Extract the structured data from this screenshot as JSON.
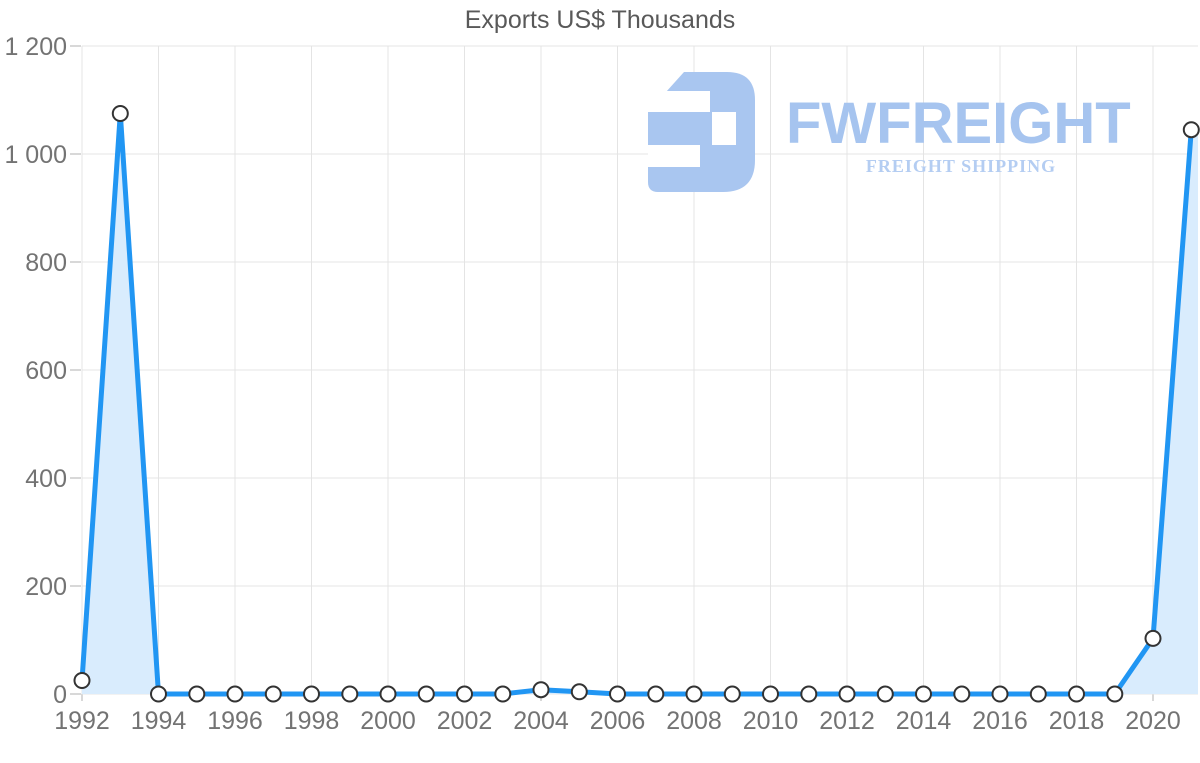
{
  "title": "Exports US$ Thousands",
  "watermark": {
    "brand": "FWFREIGHT",
    "tagline": "FREIGHT SHIPPING",
    "icon": "fwfreight-logo-mark",
    "brand_color": "#a6c4ef",
    "tagline_color": "#b4cdf2",
    "icon_color": "#a9c6f0"
  },
  "chart_data": {
    "type": "area",
    "title": "Exports US$ Thousands",
    "xlabel": "",
    "ylabel": "",
    "x": [
      1992,
      1993,
      1994,
      1995,
      1996,
      1997,
      1998,
      1999,
      2000,
      2001,
      2002,
      2003,
      2004,
      2005,
      2006,
      2007,
      2008,
      2009,
      2010,
      2011,
      2012,
      2013,
      2014,
      2015,
      2016,
      2017,
      2018,
      2019,
      2020,
      2021
    ],
    "series": [
      {
        "name": "Exports US$ Thousands",
        "values": [
          25,
          1075,
          0,
          0,
          0,
          0,
          0,
          0,
          0,
          0,
          0,
          0,
          8,
          4,
          0,
          0,
          0,
          0,
          0,
          0,
          0,
          0,
          0,
          0,
          0,
          0,
          0,
          0,
          103,
          1045
        ]
      }
    ],
    "ylim": [
      0,
      1200
    ],
    "ytick_values": [
      0,
      200,
      400,
      600,
      800,
      1000,
      1200
    ],
    "ytick_labels": [
      "0",
      "200",
      "400",
      "600",
      "800",
      "1 000",
      "1 200"
    ],
    "xtick_values": [
      1992,
      1994,
      1996,
      1998,
      2000,
      2002,
      2004,
      2006,
      2008,
      2010,
      2012,
      2014,
      2016,
      2018,
      2020
    ],
    "grid": true,
    "legend": "none",
    "colors": {
      "line": "#2196f3",
      "fill": "#d9ecfd",
      "marker_fill": "#ffffff",
      "marker_stroke": "#333333",
      "grid": "#e4e4e4",
      "tick": "#b0b0b0",
      "axis_text": "#737373",
      "title_text": "#595959"
    }
  }
}
